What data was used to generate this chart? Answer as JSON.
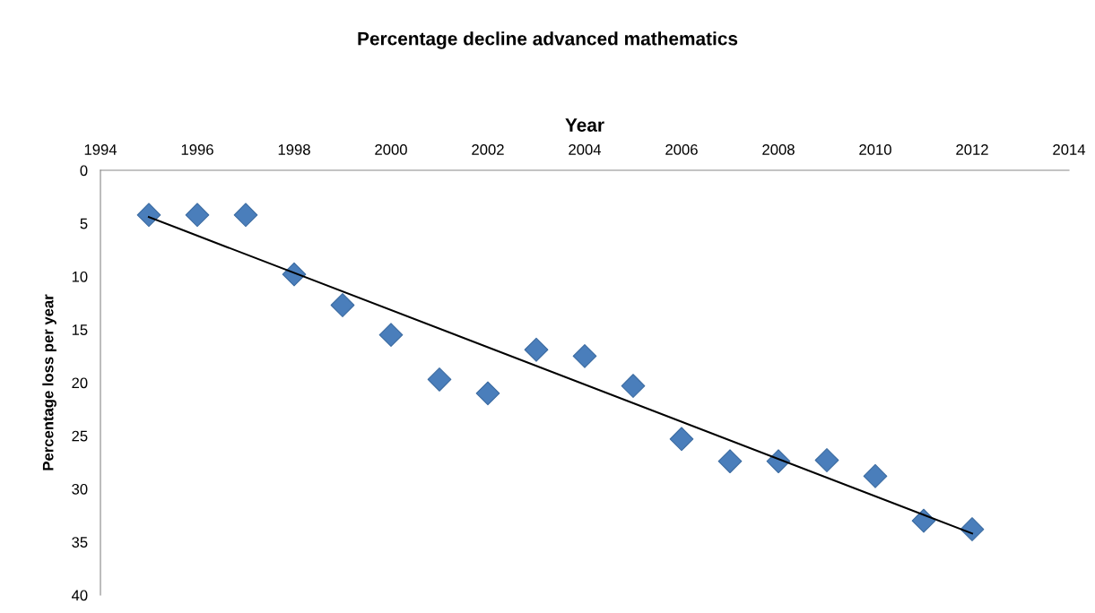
{
  "chart_data": {
    "type": "scatter",
    "title": "Percentage decline advanced mathematics",
    "xlabel": "Year",
    "ylabel": "Percentage loss per year",
    "x": [
      1995,
      1996,
      1997,
      1998,
      1999,
      2000,
      2001,
      2002,
      2003,
      2004,
      2005,
      2006,
      2007,
      2008,
      2009,
      2010,
      2011,
      2012
    ],
    "series": [
      {
        "color": "#4a7ebb",
        "marker": "diamond",
        "values": [
          4.2,
          4.2,
          4.2,
          9.8,
          12.7,
          15.5,
          19.7,
          21.0,
          16.9,
          17.5,
          20.3,
          25.3,
          27.4,
          27.4,
          27.3,
          28.8,
          33.0,
          33.8
        ]
      },
      {
        "type": "line",
        "color": "#000000",
        "marker": "none",
        "line_style": "solid",
        "x": [
          1995,
          2012
        ],
        "values": [
          4.4,
          34.2
        ]
      }
    ],
    "xlim": [
      1994,
      2014
    ],
    "xticks": [
      1994,
      1996,
      1998,
      2000,
      2002,
      2004,
      2006,
      2008,
      2010,
      2012,
      2014
    ],
    "ylim": [
      40,
      0
    ],
    "yticks": [
      0,
      5,
      10,
      15,
      20,
      25,
      30,
      35,
      40
    ],
    "grid": false,
    "legend": false
  }
}
